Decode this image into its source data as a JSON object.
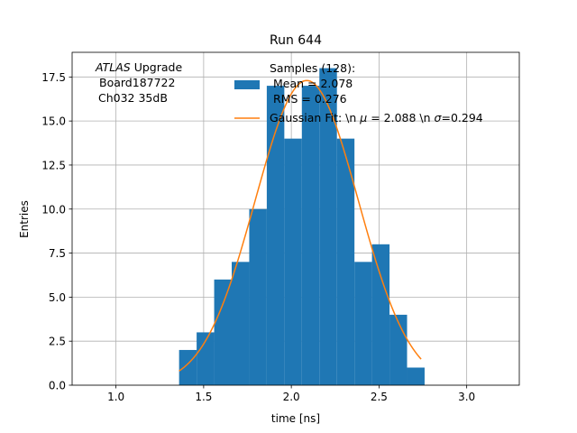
{
  "chart_data": {
    "type": "bar",
    "title": "Run 644",
    "xlabel": "time [ns]",
    "ylabel": "Entries",
    "xlim": [
      0.75,
      3.3
    ],
    "ylim": [
      0,
      18.9
    ],
    "xticks": [
      1.0,
      1.5,
      2.0,
      2.5,
      3.0
    ],
    "xtick_labels": [
      "1.0",
      "1.5",
      "2.0",
      "2.5",
      "3.0"
    ],
    "yticks": [
      0.0,
      2.5,
      5.0,
      7.5,
      10.0,
      12.5,
      15.0,
      17.5
    ],
    "ytick_labels": [
      "0.0",
      "2.5",
      "5.0",
      "7.5",
      "10.0",
      "12.5",
      "15.0",
      "17.5"
    ],
    "grid": true,
    "annotation": {
      "line1_italic": "ATLAS",
      "line1_rest": " Upgrade",
      "line2": "Board187722",
      "line3": "Ch032 35dB"
    },
    "histogram": {
      "bin_start": 1.36,
      "bin_width": 0.1,
      "counts": [
        2,
        3,
        6,
        7,
        10,
        17,
        14,
        17,
        18,
        14,
        7,
        8,
        4,
        1
      ],
      "color": "#1f77b4",
      "legend_lines": [
        "Samples (128):",
        "Mean = 2.078",
        "RMS = 0.276"
      ]
    },
    "fit": {
      "type": "gaussian",
      "mu": 2.088,
      "sigma": 0.294,
      "amplitude": 17.3,
      "x_range": [
        1.36,
        2.74
      ],
      "color": "#ff7f0e",
      "legend_label": "Gaussian Fit: \\n $\\mu$ = 2.088 \\n $\\sigma$=0.294",
      "legend_text_pre": "Gaussian Fit: \\n ",
      "legend_mu": "μ",
      "legend_text_mid": " = 2.088 \\n ",
      "legend_sigma": "σ",
      "legend_text_post": "=0.294"
    },
    "legend_position": "top-center"
  }
}
